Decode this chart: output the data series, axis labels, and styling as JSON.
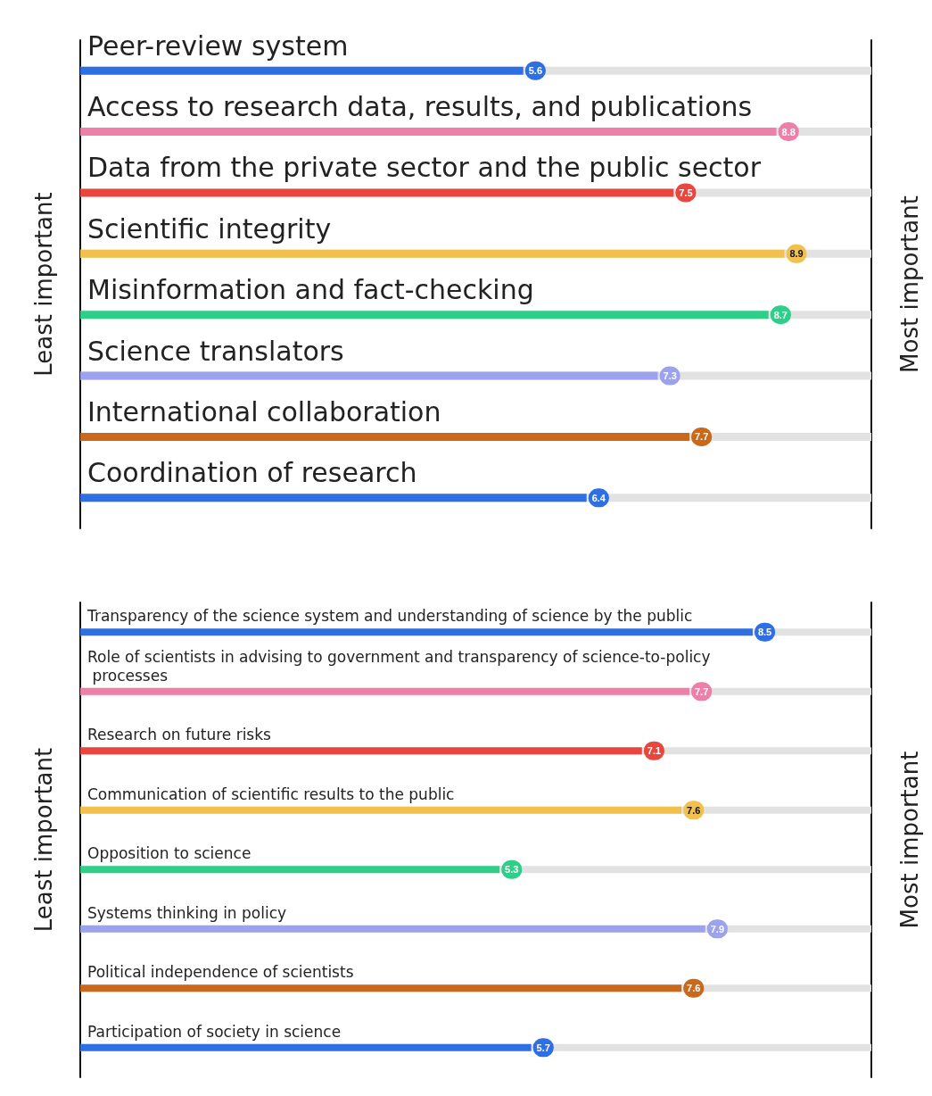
{
  "chart_data": [
    {
      "type": "bar",
      "orientation": "horizontal",
      "ylabel": "Least important",
      "y2label": "Most important",
      "tick_labels": "y",
      "data_labels": true,
      "categories": [
        "Peer-review system",
        "Access to research data, results, and publications",
        "Data from the private sector and the public sector",
        "Scientific integrity",
        "Misinformation and fact-checking",
        "Science translators",
        "International collaboration",
        "Coordination of research"
      ],
      "values": [
        5.6,
        8.8,
        7.5,
        8.9,
        8.7,
        7.3,
        7.7,
        6.4
      ],
      "colors": [
        "#2f6fe4",
        "#ee7fa8",
        "#e8463e",
        "#f2c04c",
        "#2fcf8a",
        "#9da2ee",
        "#c8691c",
        "#2f6fe4"
      ]
    },
    {
      "type": "bar",
      "orientation": "horizontal",
      "ylabel": "Least important",
      "y2label": "Most important",
      "tick_labels": "y",
      "data_labels": true,
      "categories": [
        "Transparency of the science system and understanding of science by the public",
        "Role of scientists in advising to government and transparency of science-to-policy processes",
        "Research on future risks",
        "Communication of scientific results to the public",
        "Opposition to science",
        "Systems thinking in policy",
        "Political independence of scientists",
        "Participation of society in science"
      ],
      "values": [
        8.5,
        7.7,
        7.1,
        7.6,
        5.3,
        7.9,
        7.6,
        5.7
      ],
      "colors": [
        "#2f6fe4",
        "#ee7fa8",
        "#e8463e",
        "#f2c04c",
        "#2fcf8a",
        "#9da2ee",
        "#c8691c",
        "#2f6fe4"
      ]
    }
  ]
}
